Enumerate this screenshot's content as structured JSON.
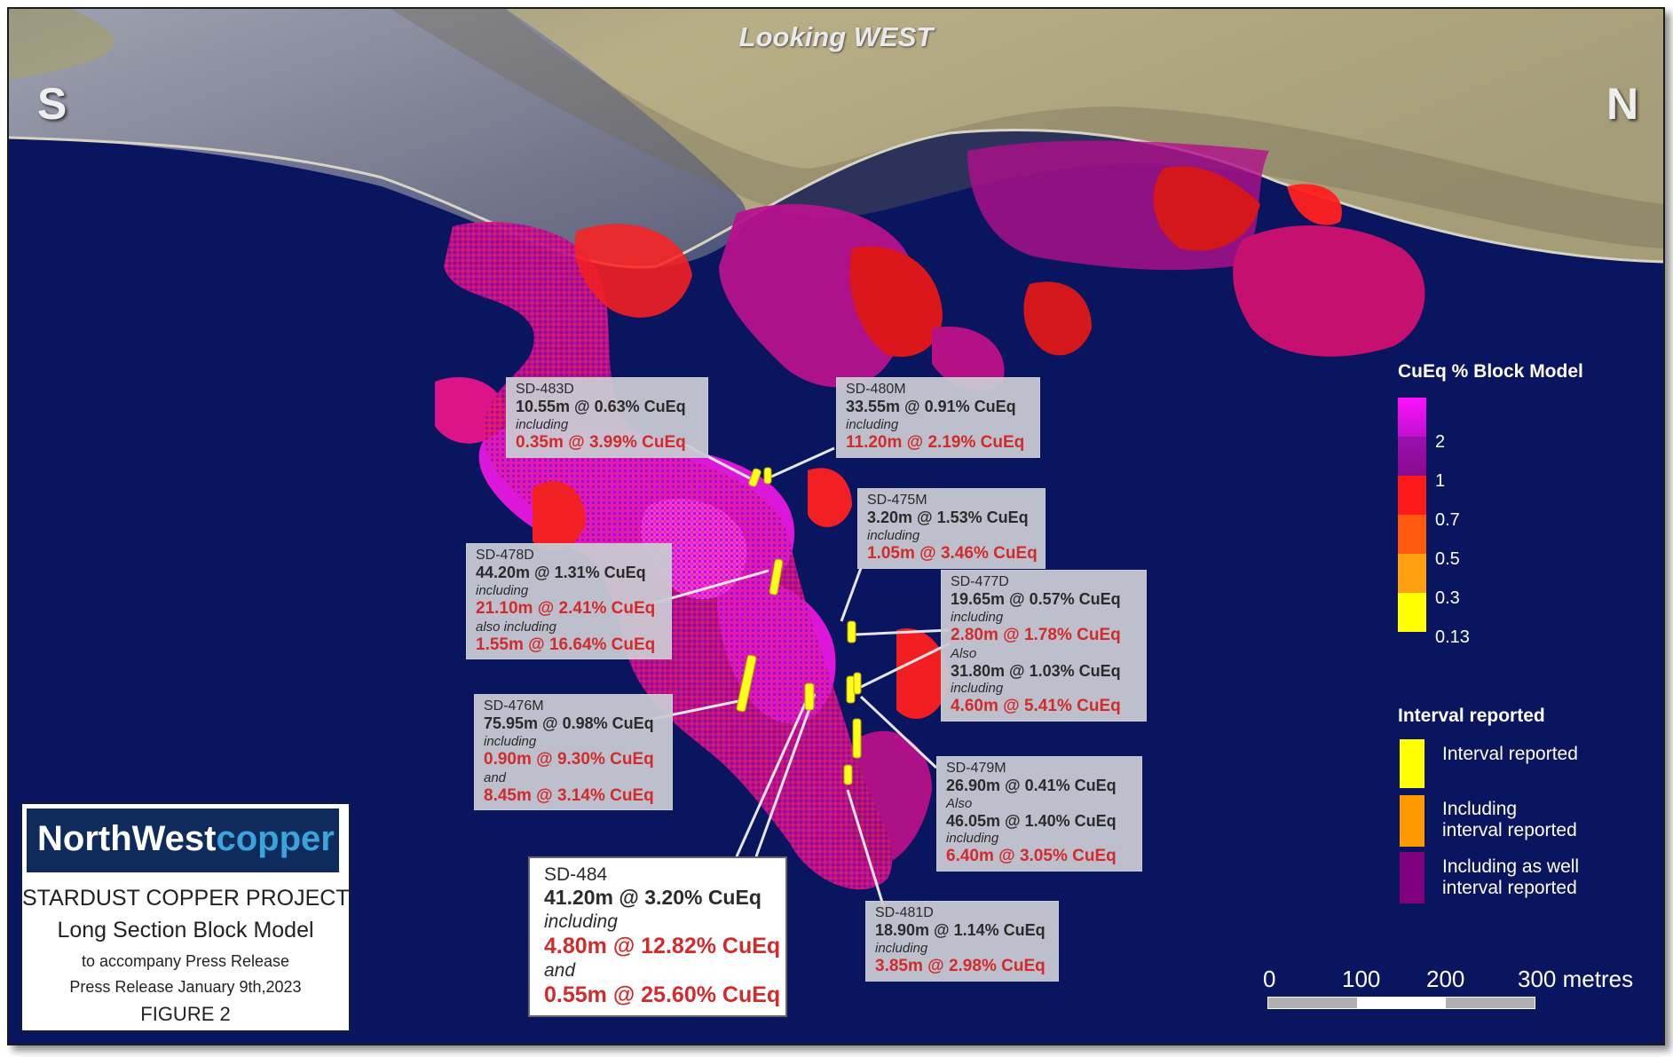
{
  "view_title": "Looking WEST",
  "south_label": "S",
  "north_label": "N",
  "callouts": {
    "sd483d": {
      "id": "SD-483D",
      "line1": "10.55m @ 0.63% CuEq",
      "inc1": "including",
      "red1": "0.35m @ 3.99% CuEq"
    },
    "sd480m": {
      "id": "SD-480M",
      "line1": "33.55m @ 0.91% CuEq",
      "inc1": "including",
      "red1": "11.20m @ 2.19% CuEq"
    },
    "sd475m": {
      "id": "SD-475M",
      "line1": "3.20m @ 1.53% CuEq",
      "inc1": "including",
      "red1": "1.05m @ 3.46% CuEq"
    },
    "sd478d": {
      "id": "SD-478D",
      "line1": "44.20m @ 1.31% CuEq",
      "inc1": "including",
      "red1": "21.10m @ 2.41% CuEq",
      "inc2": "also including",
      "red2": "1.55m @ 16.64% CuEq"
    },
    "sd477d": {
      "id": "SD-477D",
      "line1": "19.65m @ 0.57% CuEq",
      "inc1": "including",
      "red1": "2.80m @ 1.78% CuEq",
      "inc2": "Also",
      "line2": "31.80m @ 1.03% CuEq",
      "inc3": "including",
      "red2": "4.60m @ 5.41% CuEq"
    },
    "sd476m": {
      "id": "SD-476M",
      "line1": "75.95m @ 0.98% CuEq",
      "inc1": "including",
      "red1": "0.90m @ 9.30% CuEq",
      "inc2": "and",
      "red2": "8.45m @ 3.14% CuEq"
    },
    "sd479m": {
      "id": "SD-479M",
      "line1": "26.90m @ 0.41% CuEq",
      "inc1": "Also",
      "line2": "46.05m @ 1.40% CuEq",
      "inc2": "including",
      "red1": "6.40m @ 3.05% CuEq"
    },
    "sd484": {
      "id": "SD-484",
      "line1": "41.20m @ 3.20% CuEq",
      "inc1": "including",
      "red1": "4.80m @ 12.82% CuEq",
      "inc2": "and",
      "red2": "0.55m @ 25.60% CuEq"
    },
    "sd481d": {
      "id": "SD-481D",
      "line1": "18.90m @ 1.14% CuEq",
      "inc1": "including",
      "red1": "3.85m @ 2.98% CuEq"
    }
  },
  "legend": {
    "title": "CuEq % Block Model",
    "values": [
      "2",
      "1",
      "0.7",
      "0.5",
      "0.3",
      "0.13"
    ],
    "colors": [
      "#ff10ff",
      "#9b10b0",
      "#ff1a1a",
      "#ff5a10",
      "#ffa010",
      "#ffff00"
    ],
    "interval_title": "Interval reported",
    "interval_items": [
      {
        "label1": "Interval reported",
        "label2": "",
        "color": "#ffff00"
      },
      {
        "label1": "Including",
        "label2": "interval reported",
        "color": "#ff9900"
      },
      {
        "label1": "Including as well",
        "label2": "interval reported",
        "color": "#800080"
      }
    ]
  },
  "scale_bar": {
    "labels": [
      "0",
      "100",
      "200",
      "300 metres"
    ]
  },
  "logo": {
    "brand_part1": "NorthWest",
    "brand_part2": "copper",
    "project": "STARDUST COPPER PROJECT",
    "subtitle": "Long Section Block Model",
    "line3": "to accompany Press Release",
    "line4": "Press Release January 9th,2023",
    "figure": "FIGURE 2"
  }
}
